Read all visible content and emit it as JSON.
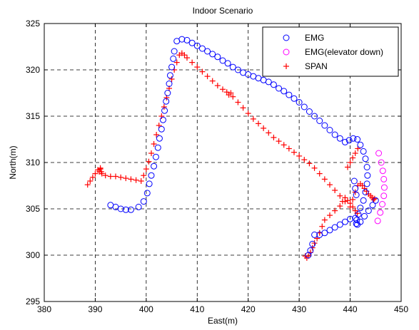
{
  "chart_data": {
    "type": "scatter",
    "title": "Indoor Scenario",
    "xlabel": "East(m)",
    "ylabel": "North(m)",
    "xlim": [
      380,
      450
    ],
    "ylim": [
      295,
      325
    ],
    "xticks": [
      380,
      390,
      400,
      410,
      420,
      430,
      440,
      450
    ],
    "yticks": [
      295,
      300,
      305,
      310,
      315,
      320,
      325
    ],
    "grid": true,
    "legend_position": "top-right",
    "series": [
      {
        "name": "EMG",
        "marker": "circle",
        "color": "#0000ff",
        "x": [
          393.0,
          394.0,
          395.0,
          396.0,
          397.0,
          398.5,
          399.5,
          400.2,
          400.6,
          401.0,
          401.5,
          401.9,
          402.3,
          402.6,
          403.0,
          403.3,
          403.6,
          403.9,
          404.2,
          404.5,
          404.7,
          405.0,
          405.3,
          405.5,
          406.0,
          407.0,
          408.0,
          409.0,
          410.0,
          411.0,
          412.0,
          413.0,
          414.0,
          415.0,
          416.0,
          417.0,
          418.0,
          419.0,
          420.0,
          421.0,
          422.0,
          423.0,
          424.0,
          425.0,
          426.0,
          427.0,
          428.0,
          429.0,
          430.0,
          431.0,
          432.0,
          433.0,
          434.0,
          435.0,
          436.0,
          437.0,
          438.0,
          439.0,
          439.8,
          440.6,
          441.4,
          442.0,
          442.6,
          443.0,
          443.3,
          443.4,
          443.3,
          443.0,
          442.6,
          442.0,
          441.6,
          441.3,
          441.2,
          441.4,
          442.0,
          442.8,
          443.6,
          444.4,
          445.0,
          441.0,
          440.0,
          439.0,
          438.0,
          437.0,
          436.0,
          435.0,
          434.0,
          433.0,
          432.6,
          432.2,
          431.8,
          441.2,
          441.0,
          440.8
        ],
        "y": [
          305.4,
          305.2,
          305.0,
          304.9,
          304.9,
          305.2,
          305.8,
          306.7,
          307.7,
          308.6,
          309.6,
          310.6,
          311.6,
          312.6,
          313.6,
          314.6,
          315.6,
          316.6,
          317.5,
          318.5,
          319.4,
          320.3,
          321.2,
          322.0,
          323.1,
          323.3,
          323.2,
          322.9,
          322.6,
          322.3,
          322.0,
          321.7,
          321.4,
          321.0,
          320.7,
          320.3,
          320.0,
          319.7,
          319.5,
          319.3,
          319.1,
          318.9,
          318.7,
          318.4,
          318.0,
          317.7,
          317.3,
          316.9,
          316.5,
          316.0,
          315.5,
          315.0,
          314.5,
          314.0,
          313.5,
          313.0,
          312.6,
          312.2,
          312.4,
          312.6,
          312.5,
          311.9,
          311.2,
          310.4,
          309.5,
          308.6,
          307.7,
          306.8,
          305.9,
          305.1,
          304.4,
          303.8,
          303.4,
          303.3,
          303.6,
          304.2,
          304.8,
          305.4,
          305.9,
          304.0,
          303.9,
          303.6,
          303.3,
          303.0,
          302.7,
          302.4,
          302.2,
          302.2,
          301.2,
          300.5,
          300.0,
          306.5,
          307.2,
          308.0
        ]
      },
      {
        "name": "EMG(elevator down)",
        "marker": "circle",
        "color": "#ff00ff",
        "x": [
          445.6,
          446.1,
          446.4,
          446.6,
          446.7,
          446.6,
          446.3,
          445.9,
          445.4
        ],
        "y": [
          311.0,
          310.0,
          309.1,
          308.2,
          307.3,
          306.4,
          305.5,
          304.6,
          303.7
        ]
      },
      {
        "name": "SPAN",
        "marker": "plus",
        "color": "#ff0000",
        "x": [
          388.5,
          389.0,
          389.5,
          390.0,
          390.5,
          391.0,
          391.2,
          391.0,
          390.8,
          391.3,
          392.0,
          393.0,
          394.0,
          395.0,
          396.0,
          397.0,
          398.0,
          399.0,
          399.5,
          400.0,
          400.5,
          401.0,
          401.5,
          402.0,
          402.5,
          403.0,
          403.5,
          404.0,
          404.5,
          405.0,
          405.5,
          406.0,
          406.5,
          407.0,
          407.5,
          408.0,
          409.0,
          410.0,
          411.0,
          412.0,
          413.0,
          414.0,
          415.0,
          415.8,
          416.2,
          416.6,
          417.0,
          418.0,
          419.0,
          420.0,
          421.0,
          422.0,
          423.0,
          424.0,
          425.0,
          426.0,
          427.0,
          428.0,
          429.0,
          430.0,
          431.0,
          432.0,
          433.0,
          434.0,
          435.0,
          436.0,
          437.0,
          438.0,
          439.0,
          440.0,
          440.5,
          441.0,
          441.5,
          442.0,
          442.4,
          442.8,
          443.2,
          443.6,
          444.0,
          444.3,
          444.6,
          444.8,
          441.4,
          441.0,
          440.5,
          440.0,
          439.5,
          439.0,
          438.5,
          438.0,
          437.0,
          436.0,
          435.0,
          434.5,
          434.0,
          433.5,
          433.0,
          432.6,
          432.2,
          431.8,
          431.5,
          431.2,
          439.5,
          440.0,
          440.5,
          441.0,
          441.5
        ],
        "y": [
          307.6,
          308.0,
          308.4,
          308.8,
          309.2,
          309.4,
          309.0,
          309.3,
          309.0,
          308.8,
          308.6,
          308.5,
          308.5,
          308.4,
          308.3,
          308.2,
          308.1,
          308.0,
          308.6,
          309.3,
          310.1,
          311.0,
          312.0,
          313.0,
          314.0,
          315.0,
          316.0,
          317.0,
          318.0,
          319.0,
          320.0,
          320.8,
          321.6,
          321.8,
          321.6,
          321.3,
          320.8,
          320.3,
          319.8,
          319.3,
          318.8,
          318.3,
          317.9,
          317.6,
          317.3,
          317.5,
          317.1,
          316.5,
          315.9,
          315.3,
          314.7,
          314.2,
          313.7,
          313.2,
          312.7,
          312.3,
          311.9,
          311.5,
          311.1,
          310.7,
          310.3,
          309.9,
          309.4,
          308.8,
          308.2,
          307.6,
          307.0,
          306.4,
          305.8,
          305.2,
          306.0,
          306.8,
          307.5,
          307.7,
          307.5,
          307.2,
          306.9,
          306.6,
          306.4,
          306.2,
          306.0,
          306.1,
          304.5,
          304.8,
          305.2,
          305.6,
          305.9,
          306.2,
          305.8,
          305.3,
          304.8,
          304.3,
          303.8,
          303.1,
          302.4,
          301.8,
          301.3,
          300.8,
          300.3,
          299.9,
          299.7,
          299.9,
          309.5,
          310.0,
          310.5,
          311.0,
          311.5
        ]
      }
    ]
  }
}
